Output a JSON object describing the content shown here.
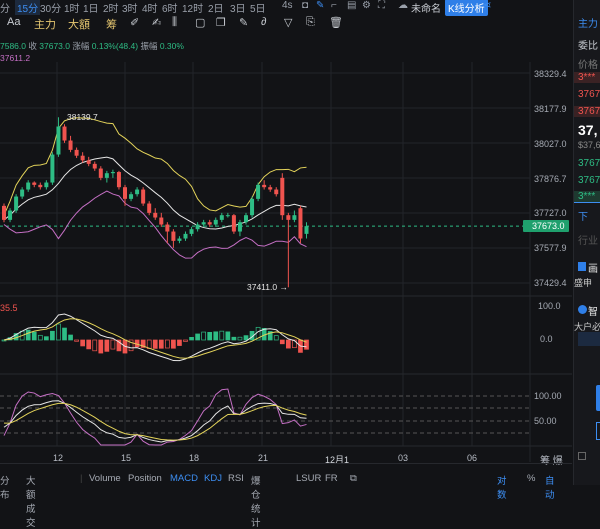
{
  "nav": {
    "intervals": [
      "分",
      "15分",
      "30分",
      "1时",
      "1日",
      "2时",
      "3时",
      "4时",
      "6时",
      "12时",
      "2日",
      "3日",
      "5日"
    ],
    "active": "15分",
    "refresh": "4s",
    "layout_name": "未命名",
    "analysis_button": "K线分析"
  },
  "toolbar": {
    "font": "Aa",
    "main": "主力",
    "large": "大額",
    "chips": "筹"
  },
  "info": {
    "line1_prefix": "7586.0",
    "close_label": "收",
    "close": "37673.0",
    "change_label": "涨幅",
    "change": "0.13%(48.4)",
    "amp_label": "振幅",
    "amp": "0.30%",
    "line2": "37611.2"
  },
  "price_axis": [
    "38329.4",
    "38177.9",
    "38027.0",
    "37876.7",
    "37727.0",
    "37577.9",
    "37429.4"
  ],
  "current_price": "37673.0",
  "high_label": "38139.7",
  "low_label": "37411.0 →",
  "macd": {
    "value": "35.5",
    "ticks": [
      "100.0",
      "0.0"
    ]
  },
  "kdj": {
    "ticks": [
      "100.00",
      "50.00"
    ]
  },
  "dates": [
    "12",
    "15",
    "18",
    "21",
    "12月1",
    "03",
    "06"
  ],
  "axis_right": "筹 爆",
  "bottom": {
    "left": [
      "分布",
      "大额成交"
    ],
    "indicators": [
      "Volume",
      "Position",
      "MACD",
      "KDJ",
      "RSI",
      "爆仓统计",
      "LSUR",
      "FR"
    ],
    "active": [
      "MACD",
      "KDJ"
    ],
    "log": "对数",
    "percent": "%",
    "auto": "自动"
  },
  "right_panel": {
    "tab": "主力",
    "ratio": "委比",
    "price": "价格",
    "asks": [
      "3***",
      "3767",
      "3767"
    ],
    "last": "37,",
    "last_usd": "$37,6",
    "bids": [
      "3767",
      "3767",
      "3***"
    ],
    "more": "下",
    "industry": "行业",
    "card1": "画",
    "card1_sub": "盛申",
    "card2": "智",
    "card2_sub": "大户必"
  },
  "colors": {
    "up": "#2ebd85",
    "down": "#f0544f",
    "accent": "#3d8ef2",
    "upper": "#e3d35a",
    "mid": "#e6e6e6",
    "lower": "#c46fc4"
  },
  "candles": [
    [
      37760,
      37770,
      37690,
      37700
    ],
    [
      37700,
      37750,
      37690,
      37740
    ],
    [
      37740,
      37810,
      37730,
      37800
    ],
    [
      37800,
      37840,
      37790,
      37830
    ],
    [
      37830,
      37870,
      37820,
      37860
    ],
    [
      37860,
      37865,
      37840,
      37850
    ],
    [
      37850,
      37860,
      37830,
      37840
    ],
    [
      37840,
      37870,
      37830,
      37860
    ],
    [
      37860,
      37990,
      37850,
      37980
    ],
    [
      37980,
      38139.7,
      37970,
      38100
    ],
    [
      38100,
      38110,
      38030,
      38040
    ],
    [
      38040,
      38060,
      37990,
      38000
    ],
    [
      38000,
      38010,
      37965,
      37975
    ],
    [
      37975,
      37990,
      37945,
      37955
    ],
    [
      37955,
      37970,
      37930,
      37940
    ],
    [
      37940,
      37950,
      37910,
      37920
    ],
    [
      37920,
      37930,
      37870,
      37880
    ],
    [
      37880,
      37910,
      37860,
      37900
    ],
    [
      37900,
      37915,
      37880,
      37905
    ],
    [
      37905,
      37910,
      37830,
      37840
    ],
    [
      37840,
      37850,
      37760,
      37790
    ],
    [
      37790,
      37820,
      37780,
      37810
    ],
    [
      37810,
      37840,
      37800,
      37830
    ],
    [
      37830,
      37840,
      37760,
      37770
    ],
    [
      37770,
      37780,
      37720,
      37730
    ],
    [
      37730,
      37750,
      37700,
      37710
    ],
    [
      37710,
      37730,
      37670,
      37680
    ],
    [
      37680,
      37690,
      37600,
      37650
    ],
    [
      37650,
      37660,
      37580,
      37610
    ],
    [
      37610,
      37630,
      37600,
      37620
    ],
    [
      37620,
      37650,
      37610,
      37640
    ],
    [
      37640,
      37670,
      37630,
      37660
    ],
    [
      37660,
      37690,
      37650,
      37680
    ],
    [
      37680,
      37700,
      37670,
      37690
    ],
    [
      37690,
      37700,
      37670,
      37680
    ],
    [
      37680,
      37710,
      37670,
      37700
    ],
    [
      37700,
      37730,
      37690,
      37720
    ],
    [
      37720,
      37730,
      37710,
      37720
    ],
    [
      37720,
      37725,
      37640,
      37650
    ],
    [
      37650,
      37700,
      37630,
      37690
    ],
    [
      37690,
      37730,
      37680,
      37720
    ],
    [
      37720,
      37800,
      37710,
      37790
    ],
    [
      37790,
      37860,
      37780,
      37850
    ],
    [
      37850,
      37870,
      37830,
      37840
    ],
    [
      37840,
      37850,
      37820,
      37830
    ],
    [
      37830,
      37840,
      37800,
      37810
    ],
    [
      37880,
      37900,
      37700,
      37720
    ],
    [
      37720,
      37730,
      37411,
      37700
    ],
    [
      37700,
      37740,
      37690,
      37720
    ],
    [
      37750,
      37760,
      37600,
      37620
    ],
    [
      37640,
      37690,
      37620,
      37673
    ]
  ]
}
